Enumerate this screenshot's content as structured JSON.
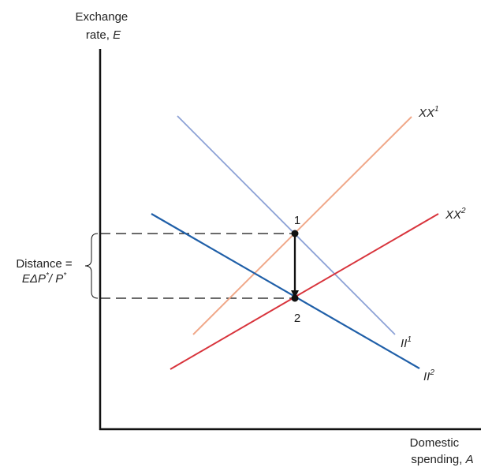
{
  "axes": {
    "y_label_line1": "Exchange",
    "y_label_line2_text": "rate, ",
    "y_label_line2_var": "E",
    "x_label_line1": "Domestic",
    "x_label_line2_text": "spending, ",
    "x_label_line2_var": "A"
  },
  "curves": {
    "xx1": {
      "base": "XX",
      "sup": "1",
      "color": "#f0a889"
    },
    "xx2": {
      "base": "XX",
      "sup": "2",
      "color": "#d8343c"
    },
    "ii1": {
      "base": "II",
      "sup": "1",
      "color": "#8da2d6"
    },
    "ii2": {
      "base": "II",
      "sup": "2",
      "color": "#1f5fa8"
    }
  },
  "points": {
    "p1": "1",
    "p2": "2"
  },
  "distance": {
    "line1": "Distance =",
    "line2_a": "EΔP",
    "line2_b": "*",
    "line2_c": "/ P",
    "line2_d": "*"
  },
  "colors": {
    "axis": "#111111",
    "dashed": "#111111",
    "arrow": "#111111"
  }
}
